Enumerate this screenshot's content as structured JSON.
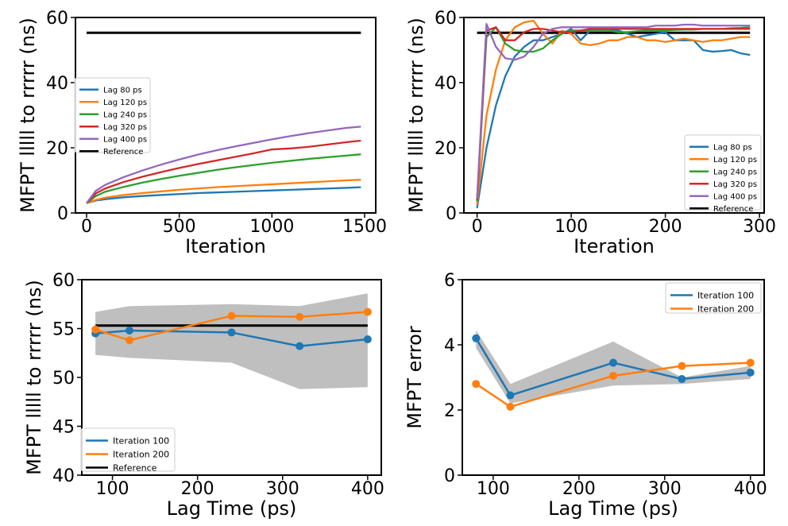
{
  "chart_data": [
    {
      "type": "line",
      "id": "p1",
      "title": "",
      "xlabel": "Iteration",
      "ylabel": "MFPT lllll to rrrrr (ns)",
      "xlim": [
        -60,
        1560
      ],
      "ylim": [
        0,
        60
      ],
      "xticks": [
        0,
        500,
        1000,
        1500
      ],
      "yticks": [
        0,
        20,
        40,
        60
      ],
      "legend": "center-left",
      "reference": {
        "name": "Reference",
        "value": 55.3,
        "x": [
          0,
          1480
        ]
      },
      "series": [
        {
          "name": "Lag 80 ps",
          "color": "#1f77b4",
          "x": [
            0,
            50,
            100,
            200,
            300,
            400,
            500,
            600,
            700,
            800,
            900,
            1000,
            1100,
            1200,
            1300,
            1400,
            1480
          ],
          "y": [
            3.0,
            3.8,
            4.2,
            4.8,
            5.2,
            5.5,
            5.8,
            6.1,
            6.3,
            6.5,
            6.7,
            6.9,
            7.1,
            7.3,
            7.5,
            7.7,
            7.9
          ]
        },
        {
          "name": "Lag 120 ps",
          "color": "#ff7f0e",
          "x": [
            0,
            50,
            100,
            200,
            300,
            400,
            500,
            600,
            700,
            800,
            900,
            1000,
            1100,
            1200,
            1300,
            1400,
            1480
          ],
          "y": [
            3.0,
            4.0,
            4.7,
            5.5,
            6.1,
            6.6,
            7.1,
            7.5,
            7.9,
            8.2,
            8.5,
            8.8,
            9.1,
            9.4,
            9.7,
            10.0,
            10.2
          ]
        },
        {
          "name": "Lag 240 ps",
          "color": "#2ca02c",
          "x": [
            0,
            50,
            100,
            200,
            300,
            400,
            500,
            600,
            700,
            800,
            900,
            1000,
            1100,
            1200,
            1300,
            1400,
            1480
          ],
          "y": [
            3.0,
            5.2,
            6.5,
            8.0,
            9.3,
            10.4,
            11.4,
            12.3,
            13.2,
            14.0,
            14.7,
            15.4,
            16.0,
            16.6,
            17.1,
            17.6,
            18.0
          ]
        },
        {
          "name": "Lag 320 ps",
          "color": "#d62728",
          "x": [
            0,
            50,
            100,
            200,
            300,
            400,
            500,
            600,
            700,
            800,
            900,
            1000,
            1100,
            1200,
            1300,
            1400,
            1480
          ],
          "y": [
            3.0,
            6.0,
            7.5,
            9.5,
            11.1,
            12.5,
            13.8,
            15.0,
            16.1,
            17.2,
            18.3,
            19.5,
            19.8,
            20.3,
            21.0,
            21.7,
            22.2
          ]
        },
        {
          "name": "Lag 400 ps",
          "color": "#9467bd",
          "x": [
            0,
            50,
            100,
            200,
            300,
            400,
            500,
            600,
            700,
            800,
            900,
            1000,
            1100,
            1200,
            1300,
            1400,
            1480
          ],
          "y": [
            3.0,
            6.8,
            8.6,
            11.0,
            13.0,
            14.8,
            16.4,
            17.9,
            19.2,
            20.4,
            21.5,
            22.6,
            23.6,
            24.5,
            25.3,
            26.1,
            26.5
          ]
        }
      ]
    },
    {
      "type": "line",
      "id": "p2",
      "title": "",
      "xlabel": "Iteration",
      "ylabel": "MFPT lllll to rrrrr (ns)",
      "xlim": [
        -14,
        305
      ],
      "ylim": [
        0,
        60
      ],
      "xticks": [
        0,
        100,
        200,
        300
      ],
      "yticks": [
        0,
        20,
        40,
        60
      ],
      "legend": "lower-right",
      "reference": {
        "name": "Reference",
        "value": 55.3,
        "x": [
          0,
          290
        ]
      },
      "series": [
        {
          "name": "Lag 80 ps",
          "color": "#1f77b4",
          "x": [
            0,
            10,
            20,
            30,
            40,
            50,
            60,
            70,
            80,
            90,
            100,
            110,
            120,
            130,
            140,
            150,
            160,
            170,
            180,
            190,
            200,
            210,
            220,
            230,
            240,
            250,
            260,
            270,
            280,
            290
          ],
          "y": [
            1.5,
            20,
            33,
            42,
            48,
            51,
            53,
            53,
            54,
            55,
            56.5,
            53,
            56,
            56.5,
            56,
            56,
            55,
            54,
            54.5,
            55,
            55.5,
            53,
            53,
            53,
            50,
            49.5,
            49.7,
            50,
            49,
            48.5
          ]
        },
        {
          "name": "Lag 120 ps",
          "color": "#ff7f0e",
          "x": [
            0,
            10,
            20,
            30,
            40,
            50,
            60,
            70,
            80,
            90,
            100,
            110,
            120,
            130,
            140,
            150,
            160,
            170,
            180,
            190,
            200,
            210,
            220,
            230,
            240,
            250,
            260,
            270,
            280,
            290
          ],
          "y": [
            2.5,
            30,
            44,
            53,
            57,
            58.5,
            59,
            55,
            52,
            56,
            55,
            52,
            51.5,
            52,
            53,
            53,
            54,
            54,
            53,
            53,
            52.5,
            53,
            53.5,
            53,
            52.5,
            53,
            53,
            53.5,
            54,
            54
          ]
        },
        {
          "name": "Lag 240 ps",
          "color": "#2ca02c",
          "x": [
            0,
            10,
            20,
            30,
            40,
            50,
            60,
            70,
            80,
            90,
            100,
            110,
            120,
            130,
            140,
            150,
            160,
            170,
            180,
            190,
            200,
            210,
            220,
            230,
            240,
            250,
            260,
            270,
            280,
            290
          ],
          "y": [
            3.5,
            54,
            57,
            52,
            50,
            49.5,
            49.5,
            50.5,
            53,
            55,
            56,
            56,
            56,
            56,
            56,
            55.5,
            55.5,
            55.8,
            56,
            56,
            56,
            56.2,
            56.3,
            56.3,
            56.5,
            56.5,
            56.5,
            56.7,
            56.8,
            57
          ]
        },
        {
          "name": "Lag 320 ps",
          "color": "#d62728",
          "x": [
            0,
            10,
            20,
            30,
            40,
            50,
            60,
            70,
            80,
            90,
            100,
            110,
            120,
            130,
            140,
            150,
            160,
            170,
            180,
            190,
            200,
            210,
            220,
            230,
            240,
            250,
            260,
            270,
            280,
            290
          ],
          "y": [
            4.0,
            56,
            57,
            53,
            53,
            55.5,
            56.5,
            56.5,
            56,
            55.5,
            55.5,
            56,
            56.5,
            56.5,
            56.5,
            56.5,
            56.5,
            56.5,
            56.5,
            56.5,
            56.5,
            56.5,
            56.5,
            56.5,
            56.5,
            56.5,
            56.5,
            56.5,
            56.5,
            56.5
          ]
        },
        {
          "name": "Lag 400 ps",
          "color": "#9467bd",
          "x": [
            0,
            10,
            20,
            30,
            40,
            50,
            60,
            70,
            80,
            90,
            100,
            110,
            120,
            130,
            140,
            150,
            160,
            170,
            180,
            190,
            200,
            210,
            220,
            230,
            240,
            250,
            260,
            270,
            280,
            290
          ],
          "y": [
            4.5,
            58,
            51,
            47.5,
            47,
            48,
            51,
            55,
            56.5,
            57,
            57,
            57,
            57,
            57,
            57,
            57,
            57,
            57,
            57,
            57.5,
            57.5,
            57.5,
            57.8,
            57.8,
            57.5,
            57.5,
            57.5,
            57.5,
            57.5,
            57.5
          ]
        }
      ]
    },
    {
      "type": "line",
      "id": "p3",
      "title": "",
      "xlabel": "Lag Time (ps)",
      "ylabel": "MFPT lllll to rrrrr (ns)",
      "xlim": [
        64,
        416
      ],
      "ylim": [
        40,
        60
      ],
      "xticks": [
        100,
        200,
        300,
        400
      ],
      "yticks": [
        40,
        45,
        50,
        55,
        60
      ],
      "legend": "lower-left",
      "band": {
        "x": [
          80,
          120,
          240,
          320,
          400
        ],
        "lower": [
          52.3,
          52.0,
          51.5,
          48.8,
          49.0
        ],
        "upper": [
          56.7,
          57.3,
          57.5,
          57.3,
          58.6
        ]
      },
      "reference": {
        "name": "Reference",
        "value": 55.3,
        "x": [
          80,
          400
        ]
      },
      "series": [
        {
          "name": "Iteration 100",
          "color": "#1f77b4",
          "x": [
            80,
            120,
            240,
            320,
            400
          ],
          "y": [
            54.5,
            54.8,
            54.6,
            53.2,
            53.9
          ]
        },
        {
          "name": "Iteration 200",
          "color": "#ff7f0e",
          "x": [
            80,
            120,
            240,
            320,
            400
          ],
          "y": [
            54.9,
            53.8,
            56.3,
            56.2,
            56.7
          ]
        }
      ]
    },
    {
      "type": "line",
      "id": "p4",
      "title": "",
      "xlabel": "Lag Time (ps)",
      "ylabel": "MFPT error",
      "xlim": [
        64,
        416
      ],
      "ylim": [
        0,
        6
      ],
      "xticks": [
        100,
        200,
        300,
        400
      ],
      "yticks": [
        0,
        2,
        4,
        6
      ],
      "legend": "top-right",
      "band": {
        "x": [
          80,
          120,
          240,
          320,
          400
        ],
        "lower": [
          3.9,
          2.2,
          2.75,
          2.8,
          2.95
        ],
        "upper": [
          4.45,
          2.8,
          4.1,
          3.0,
          3.35
        ]
      },
      "series": [
        {
          "name": "Iteration 100",
          "color": "#1f77b4",
          "x": [
            80,
            120,
            240,
            320,
            400
          ],
          "y": [
            4.2,
            2.45,
            3.45,
            2.95,
            3.15
          ]
        },
        {
          "name": "Iteration 200",
          "color": "#ff7f0e",
          "x": [
            80,
            120,
            240,
            320,
            400
          ],
          "y": [
            2.8,
            2.1,
            3.05,
            3.35,
            3.45
          ]
        }
      ]
    }
  ]
}
